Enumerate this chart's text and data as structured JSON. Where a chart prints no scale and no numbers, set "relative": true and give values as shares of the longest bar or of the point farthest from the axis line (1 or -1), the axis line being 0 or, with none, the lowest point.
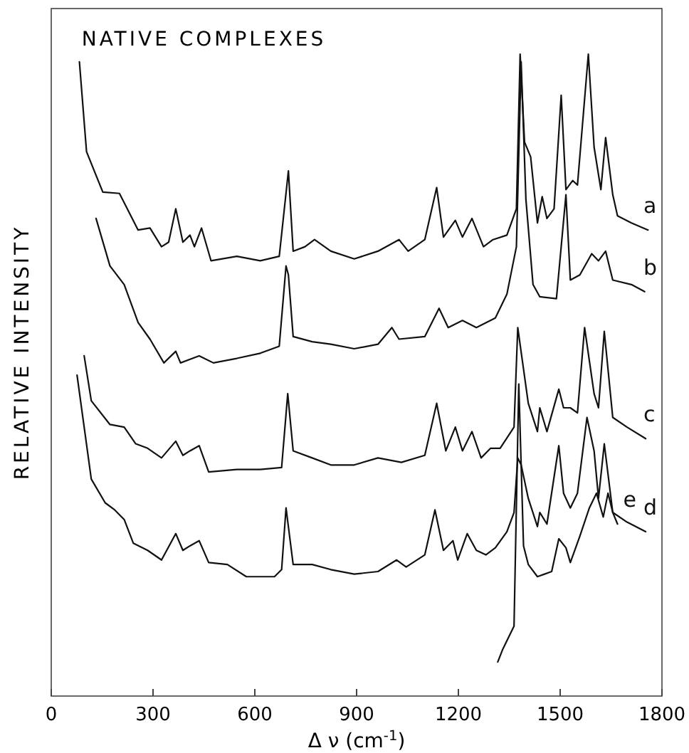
{
  "chart_data": {
    "type": "line",
    "title": "NATIVE COMPLEXES",
    "xlabel": "Δ ν (cm$^{-1}$)",
    "ylabel": "RELATIVE INTENSITY",
    "relative": true,
    "xlim": [
      0,
      1800
    ],
    "xticks": [
      0,
      300,
      600,
      900,
      1200,
      1500,
      1800
    ],
    "grid": false,
    "marker": "none",
    "line_style": "solid",
    "series": [
      {
        "name": "a",
        "color": "#111111",
        "x": [
          83,
          104,
          152,
          201,
          256,
          291,
          325,
          346,
          367,
          388,
          409,
          422,
          443,
          471,
          547,
          616,
          672,
          699,
          713,
          748,
          776,
          824,
          893,
          963,
          1025,
          1052,
          1101,
          1136,
          1156,
          1191,
          1212,
          1240,
          1274,
          1302,
          1343,
          1371,
          1382,
          1395,
          1413,
          1433,
          1447,
          1461,
          1482,
          1503,
          1517,
          1537,
          1551,
          1583,
          1600,
          1620,
          1634,
          1655,
          1669,
          1710,
          1759
        ],
        "values": [
          0.988,
          0.848,
          0.785,
          0.783,
          0.726,
          0.729,
          0.7,
          0.707,
          0.759,
          0.707,
          0.718,
          0.7,
          0.729,
          0.678,
          0.685,
          0.678,
          0.685,
          0.818,
          0.693,
          0.7,
          0.711,
          0.693,
          0.681,
          0.693,
          0.711,
          0.693,
          0.711,
          0.792,
          0.715,
          0.741,
          0.715,
          0.744,
          0.7,
          0.711,
          0.718,
          0.759,
          1,
          0.863,
          0.84,
          0.737,
          0.778,
          0.744,
          0.759,
          0.936,
          0.789,
          0.803,
          0.796,
          1,
          0.855,
          0.789,
          0.87,
          0.781,
          0.748,
          0.737,
          0.726
        ]
      },
      {
        "name": "b",
        "color": "#111111",
        "x": [
          132,
          173,
          215,
          256,
          291,
          332,
          367,
          381,
          436,
          478,
          547,
          616,
          672,
          692,
          699,
          713,
          769,
          824,
          893,
          963,
          1004,
          1025,
          1101,
          1143,
          1170,
          1212,
          1253,
          1309,
          1343,
          1371,
          1385,
          1399,
          1420,
          1440,
          1489,
          1517,
          1530,
          1558,
          1593,
          1613,
          1634,
          1655,
          1710,
          1749
        ],
        "values": [
          0.744,
          0.67,
          0.641,
          0.582,
          0.556,
          0.519,
          0.537,
          0.519,
          0.53,
          0.519,
          0.526,
          0.534,
          0.545,
          0.67,
          0.656,
          0.56,
          0.552,
          0.548,
          0.541,
          0.548,
          0.574,
          0.556,
          0.56,
          0.604,
          0.574,
          0.585,
          0.574,
          0.589,
          0.626,
          0.7,
          0.988,
          0.774,
          0.641,
          0.622,
          0.619,
          0.781,
          0.648,
          0.656,
          0.689,
          0.678,
          0.693,
          0.648,
          0.641,
          0.63
        ]
      },
      {
        "name": "c",
        "color": "#111111",
        "x": [
          97,
          118,
          173,
          215,
          249,
          284,
          325,
          367,
          388,
          409,
          436,
          464,
          547,
          616,
          679,
          697,
          713,
          769,
          824,
          893,
          963,
          1032,
          1101,
          1136,
          1163,
          1191,
          1212,
          1240,
          1267,
          1295,
          1323,
          1364,
          1375,
          1406,
          1433,
          1440,
          1461,
          1496,
          1510,
          1530,
          1551,
          1572,
          1600,
          1613,
          1630,
          1655,
          1697,
          1752
        ],
        "values": [
          0.53,
          0.46,
          0.423,
          0.419,
          0.393,
          0.386,
          0.371,
          0.397,
          0.375,
          0.382,
          0.39,
          0.349,
          0.353,
          0.353,
          0.356,
          0.471,
          0.382,
          0.371,
          0.36,
          0.36,
          0.371,
          0.364,
          0.375,
          0.456,
          0.382,
          0.419,
          0.382,
          0.412,
          0.371,
          0.386,
          0.386,
          0.419,
          0.574,
          0.456,
          0.412,
          0.449,
          0.412,
          0.478,
          0.449,
          0.449,
          0.441,
          0.574,
          0.471,
          0.449,
          0.568,
          0.434,
          0.419,
          0.401
        ]
      },
      {
        "name": "d",
        "color": "#111111",
        "x": [
          76,
          118,
          159,
          187,
          215,
          242,
          284,
          325,
          367,
          388,
          409,
          436,
          464,
          519,
          575,
          658,
          679,
          692,
          713,
          769,
          824,
          893,
          963,
          1018,
          1046,
          1101,
          1131,
          1156,
          1184,
          1198,
          1226,
          1253,
          1281,
          1309,
          1343,
          1364,
          1375,
          1385,
          1406,
          1433,
          1440,
          1461,
          1496,
          1510,
          1530,
          1551,
          1579,
          1600,
          1613,
          1630,
          1655,
          1697,
          1752
        ],
        "values": [
          0.5,
          0.338,
          0.301,
          0.29,
          0.275,
          0.238,
          0.227,
          0.212,
          0.253,
          0.227,
          0.234,
          0.242,
          0.208,
          0.205,
          0.186,
          0.186,
          0.197,
          0.293,
          0.205,
          0.205,
          0.197,
          0.19,
          0.194,
          0.212,
          0.201,
          0.22,
          0.29,
          0.227,
          0.242,
          0.212,
          0.253,
          0.227,
          0.22,
          0.231,
          0.256,
          0.286,
          0.371,
          0.36,
          0.308,
          0.264,
          0.286,
          0.268,
          0.39,
          0.316,
          0.293,
          0.316,
          0.434,
          0.382,
          0.308,
          0.393,
          0.286,
          0.271,
          0.256
        ]
      },
      {
        "name": "e",
        "color": "#111111",
        "x": [
          1316,
          1330,
          1364,
          1378,
          1392,
          1406,
          1433,
          1475,
          1496,
          1517,
          1530,
          1558,
          1586,
          1607,
          1627,
          1641,
          1655,
          1669
        ],
        "values": [
          0.053,
          0.072,
          0.109,
          0.486,
          0.234,
          0.205,
          0.186,
          0.194,
          0.245,
          0.231,
          0.208,
          0.249,
          0.293,
          0.316,
          0.279,
          0.316,
          0.286,
          0.268
        ]
      }
    ]
  }
}
